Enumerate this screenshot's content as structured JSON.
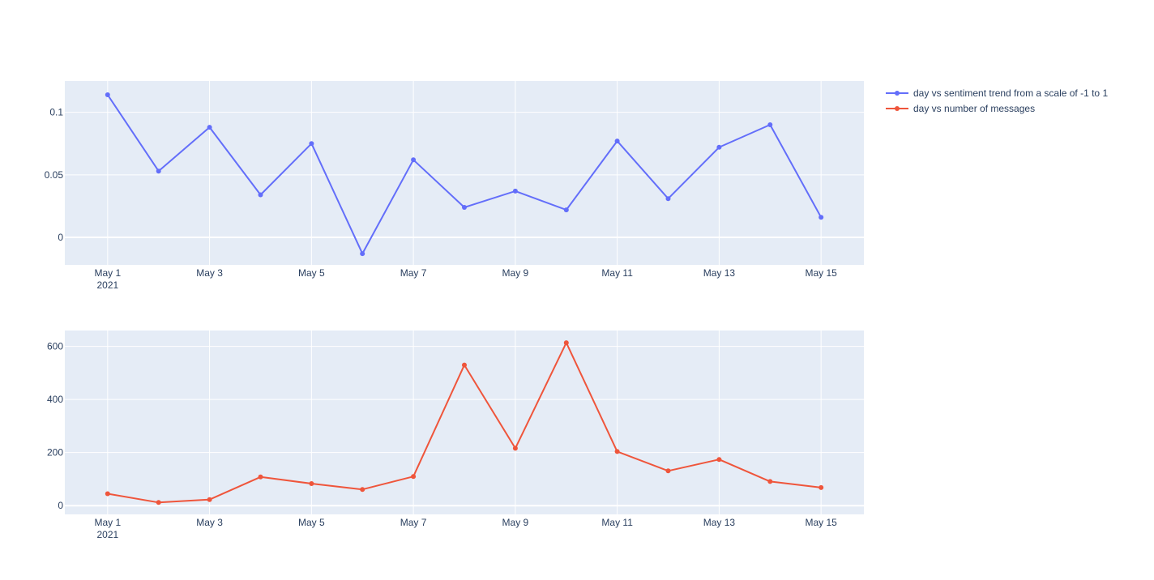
{
  "chart_data": [
    {
      "type": "line",
      "x": [
        "2021-05-01",
        "2021-05-02",
        "2021-05-03",
        "2021-05-04",
        "2021-05-05",
        "2021-05-06",
        "2021-05-07",
        "2021-05-08",
        "2021-05-09",
        "2021-05-10",
        "2021-05-11",
        "2021-05-12",
        "2021-05-13",
        "2021-05-14",
        "2021-05-15"
      ],
      "series": [
        {
          "name": "day vs sentiment trend from a scale of -1 to 1",
          "color": "#636efa",
          "values": [
            0.114,
            0.053,
            0.088,
            0.034,
            0.075,
            -0.013,
            0.062,
            0.024,
            0.037,
            0.022,
            0.077,
            0.031,
            0.072,
            0.09,
            0.016
          ]
        }
      ],
      "ylim": [
        -0.022,
        0.125
      ],
      "yticks": [
        0,
        0.05,
        0.1
      ],
      "ytick_labels": [
        "0",
        "0.05",
        "0.1"
      ],
      "xticks": [
        "2021-05-01",
        "2021-05-03",
        "2021-05-05",
        "2021-05-07",
        "2021-05-09",
        "2021-05-11",
        "2021-05-13",
        "2021-05-15"
      ],
      "xtick_labels": [
        "May 1",
        "May 3",
        "May 5",
        "May 7",
        "May 9",
        "May 11",
        "May 13",
        "May 15"
      ],
      "xtick_year": "2021",
      "grid": true
    },
    {
      "type": "line",
      "x": [
        "2021-05-01",
        "2021-05-02",
        "2021-05-03",
        "2021-05-04",
        "2021-05-05",
        "2021-05-06",
        "2021-05-07",
        "2021-05-08",
        "2021-05-09",
        "2021-05-10",
        "2021-05-11",
        "2021-05-12",
        "2021-05-13",
        "2021-05-14",
        "2021-05-15"
      ],
      "series": [
        {
          "name": "day vs number of messages",
          "color": "#ef553b",
          "values": [
            45,
            12,
            23,
            108,
            83,
            61,
            110,
            530,
            216,
            614,
            204,
            131,
            174,
            91,
            68
          ]
        }
      ],
      "ylim": [
        -33,
        660
      ],
      "yticks": [
        0,
        200,
        400,
        600
      ],
      "ytick_labels": [
        "0",
        "200",
        "400",
        "600"
      ],
      "xticks": [
        "2021-05-01",
        "2021-05-03",
        "2021-05-05",
        "2021-05-07",
        "2021-05-09",
        "2021-05-11",
        "2021-05-13",
        "2021-05-15"
      ],
      "xtick_labels": [
        "May 1",
        "May 3",
        "May 5",
        "May 7",
        "May 9",
        "May 11",
        "May 13",
        "May 15"
      ],
      "xtick_year": "2021",
      "grid": true
    }
  ],
  "legend": {
    "placement": "top-right",
    "items": [
      {
        "label": "day vs sentiment trend from a scale of -1 to 1",
        "color": "#636efa"
      },
      {
        "label": "day vs number of messages",
        "color": "#ef553b"
      }
    ]
  },
  "colors": {
    "plot_bg": "#e5ecf6",
    "grid": "#ffffff",
    "text": "#2a3f5f"
  }
}
